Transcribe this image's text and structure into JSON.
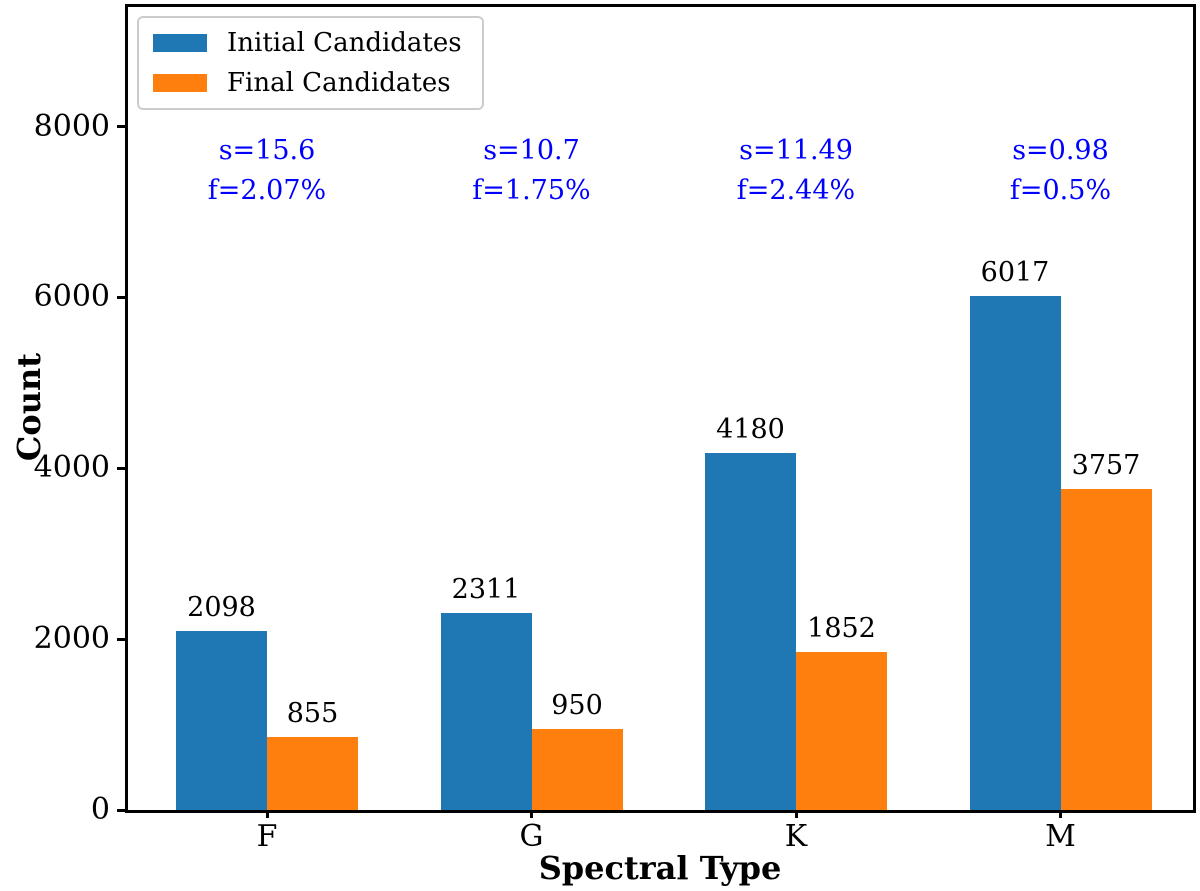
{
  "chart_data": {
    "type": "bar",
    "title": "",
    "xlabel": "Spectral Type",
    "ylabel": "Count",
    "categories": [
      "F",
      "G",
      "K",
      "M"
    ],
    "series": [
      {
        "name": "Initial Candidates",
        "color": "#1f77b4",
        "values": [
          2098,
          2311,
          4180,
          6017
        ]
      },
      {
        "name": "Final Candidates",
        "color": "#ff7f0e",
        "values": [
          855,
          950,
          1852,
          3757
        ]
      }
    ],
    "bar_value_labels": [
      [
        "2098",
        "2311",
        "4180",
        "6017"
      ],
      [
        "855",
        "950",
        "1852",
        "3757"
      ]
    ],
    "annotations": [
      {
        "lines": [
          "s=15.6",
          "f=2.07%"
        ]
      },
      {
        "lines": [
          "s=10.7",
          "f=1.75%"
        ]
      },
      {
        "lines": [
          "s=11.49",
          "f=2.44%"
        ]
      },
      {
        "lines": [
          "s=0.98",
          "f=0.5%"
        ]
      }
    ],
    "annotation_color": "#0000ff",
    "ytick_labels": [
      "0",
      "2000",
      "4000",
      "6000",
      "8000"
    ],
    "ytick_values": [
      0,
      2000,
      4000,
      6000,
      8000
    ],
    "ylim": [
      0,
      9400
    ],
    "grid": false,
    "legend_position": "upper-left"
  }
}
